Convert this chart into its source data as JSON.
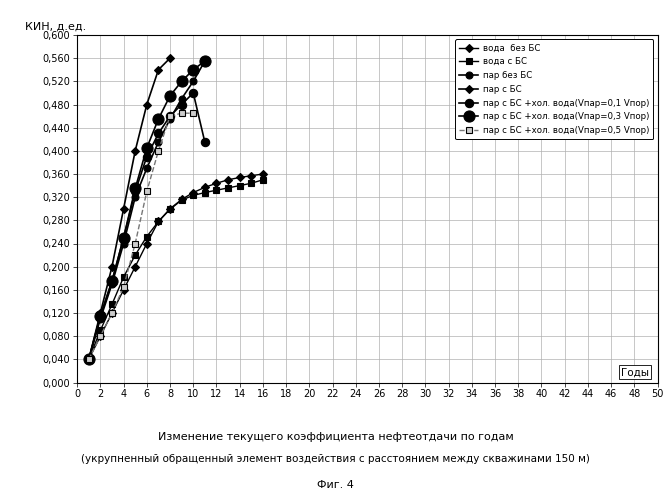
{
  "title_line1": "Изменение текущего коэффициента нефтеотдачи по годам",
  "title_line2": "(укрупненный обращенный элемент воздействия с расстоянием между скважинами 150 м)",
  "fig_label": "Фиг. 4",
  "ylabel": "КИН, д.ед.",
  "xlabel": "Годы",
  "xlim": [
    0,
    50
  ],
  "ylim": [
    0.0,
    0.6
  ],
  "xticks": [
    0,
    2,
    4,
    6,
    8,
    10,
    12,
    14,
    16,
    18,
    20,
    22,
    24,
    26,
    28,
    30,
    32,
    34,
    36,
    38,
    40,
    42,
    44,
    46,
    48,
    50
  ],
  "yticks": [
    0.0,
    0.04,
    0.08,
    0.12,
    0.16,
    0.2,
    0.24,
    0.28,
    0.32,
    0.36,
    0.4,
    0.44,
    0.48,
    0.52,
    0.56,
    0.6
  ],
  "series": [
    {
      "label": "вода  без БС",
      "color": "#000000",
      "marker": "D",
      "markersize": 4,
      "linestyle": "-",
      "linewidth": 1.0,
      "markerfacecolor": "#000000",
      "x": [
        1,
        2,
        3,
        4,
        5,
        6,
        7,
        8,
        9,
        10,
        11,
        12,
        13,
        14,
        15,
        16
      ],
      "y": [
        0.04,
        0.08,
        0.12,
        0.16,
        0.2,
        0.24,
        0.278,
        0.3,
        0.316,
        0.328,
        0.337,
        0.344,
        0.35,
        0.354,
        0.357,
        0.36
      ]
    },
    {
      "label": "вода с БС",
      "color": "#000000",
      "marker": "s",
      "markersize": 5,
      "linestyle": "-",
      "linewidth": 1.0,
      "markerfacecolor": "#000000",
      "x": [
        1,
        2,
        3,
        4,
        5,
        6,
        7,
        8,
        9,
        10,
        11,
        12,
        13,
        14,
        15,
        16
      ],
      "y": [
        0.04,
        0.09,
        0.135,
        0.182,
        0.22,
        0.252,
        0.278,
        0.299,
        0.315,
        0.323,
        0.328,
        0.332,
        0.336,
        0.34,
        0.344,
        0.35
      ]
    },
    {
      "label": "пар без БС",
      "color": "#000000",
      "marker": "o",
      "markersize": 5,
      "linestyle": "-",
      "linewidth": 1.2,
      "markerfacecolor": "#000000",
      "x": [
        1,
        2,
        3,
        4,
        5,
        6,
        7,
        8,
        9,
        10,
        11
      ],
      "y": [
        0.04,
        0.11,
        0.17,
        0.24,
        0.32,
        0.37,
        0.415,
        0.455,
        0.49,
        0.52,
        0.555
      ]
    },
    {
      "label": "пар с БС",
      "color": "#000000",
      "marker": "D",
      "markersize": 4,
      "linestyle": "-",
      "linewidth": 1.2,
      "markerfacecolor": "#000000",
      "x": [
        1,
        2,
        3,
        4,
        5,
        6,
        7,
        8
      ],
      "y": [
        0.04,
        0.12,
        0.2,
        0.3,
        0.4,
        0.48,
        0.54,
        0.56
      ]
    },
    {
      "label": "пар с БС +хол. вода(Vпар=0,1 Vпор)",
      "color": "#000000",
      "marker": "o",
      "markersize": 6,
      "linestyle": "-",
      "linewidth": 1.2,
      "markerfacecolor": "#000000",
      "x": [
        1,
        2,
        3,
        4,
        5,
        6,
        7,
        8,
        9,
        10,
        11
      ],
      "y": [
        0.04,
        0.115,
        0.175,
        0.25,
        0.33,
        0.39,
        0.43,
        0.46,
        0.48,
        0.5,
        0.415
      ]
    },
    {
      "label": "пар с БС +хол. вода(Vпар=0,3 Vпор)",
      "color": "#000000",
      "marker": "o",
      "markersize": 8,
      "linestyle": "-",
      "linewidth": 1.2,
      "markerfacecolor": "#000000",
      "x": [
        1,
        2,
        3,
        4,
        5,
        6,
        7,
        8,
        9,
        10,
        11
      ],
      "y": [
        0.04,
        0.115,
        0.175,
        0.25,
        0.335,
        0.405,
        0.455,
        0.495,
        0.52,
        0.54,
        0.555
      ]
    },
    {
      "label": "пар с БС +хол. вода(Vпар=0,5 Vпор)",
      "color": "#777777",
      "marker": "s",
      "markersize": 5,
      "linestyle": "--",
      "linewidth": 1.0,
      "markerfacecolor": "#cccccc",
      "markeredgecolor": "#000000",
      "x": [
        1,
        2,
        3,
        4,
        5,
        6,
        7,
        8,
        9,
        10
      ],
      "y": [
        0.04,
        0.08,
        0.12,
        0.165,
        0.24,
        0.33,
        0.4,
        0.46,
        0.465,
        0.465
      ]
    }
  ]
}
